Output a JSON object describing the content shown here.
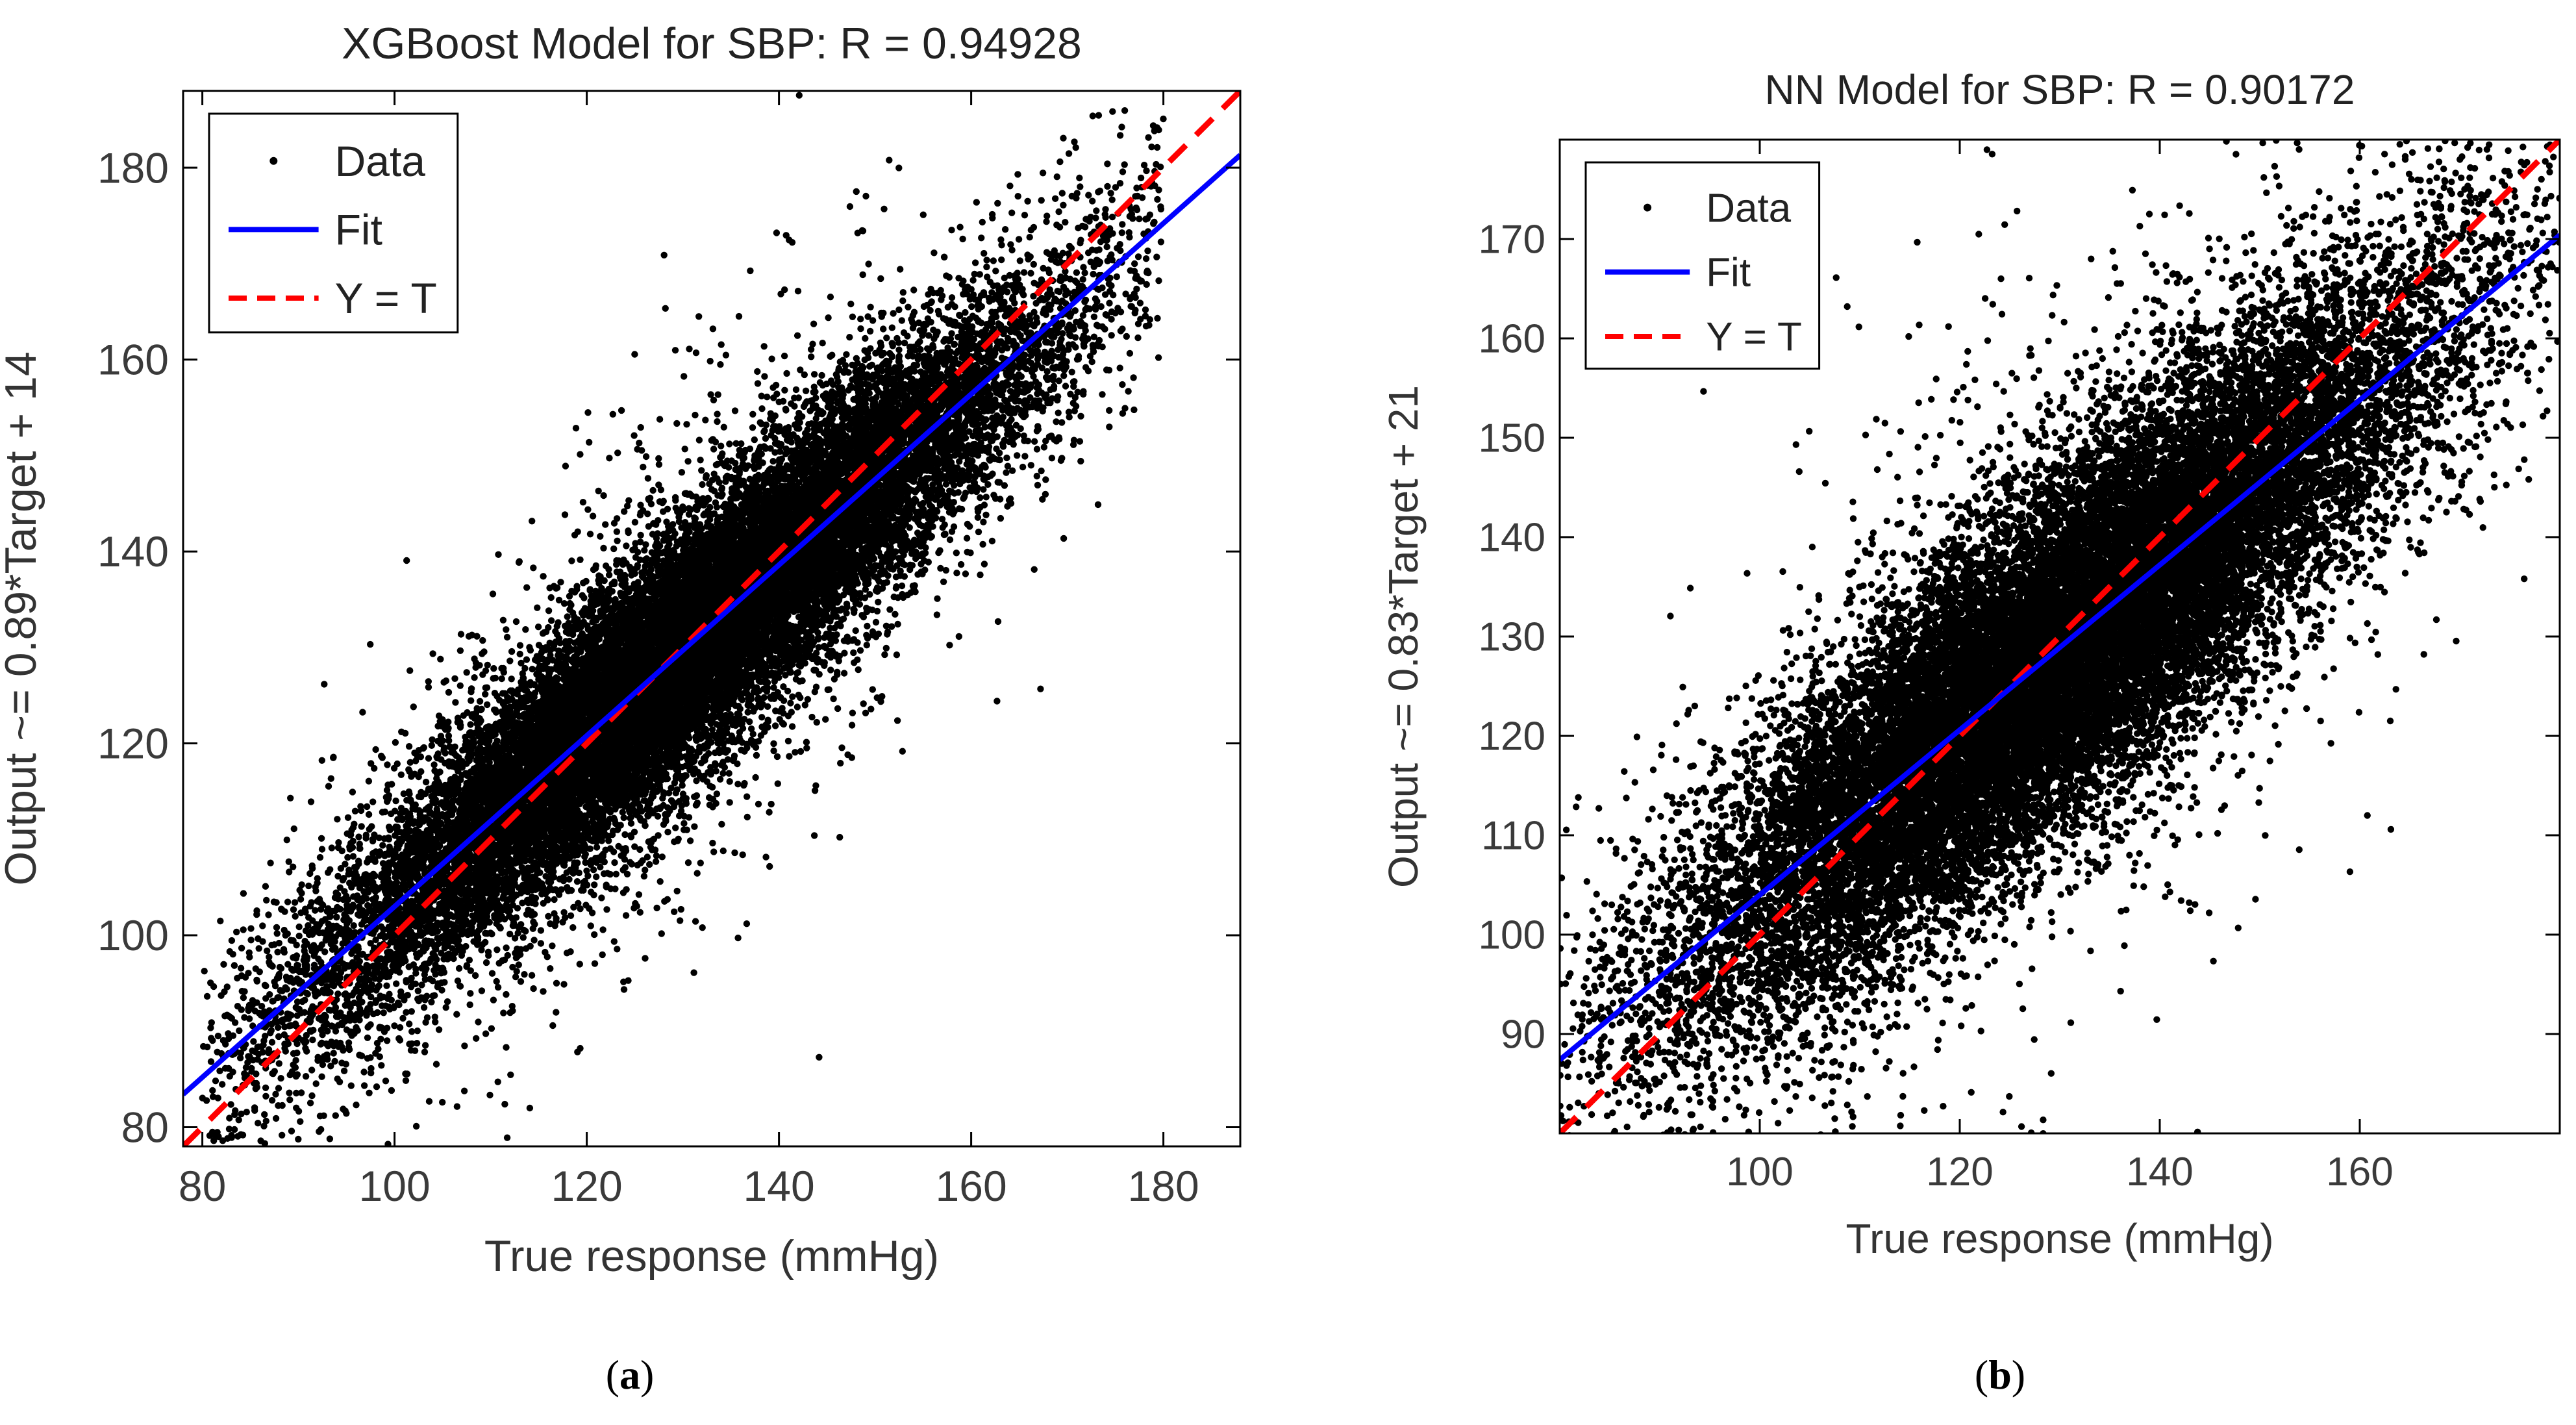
{
  "chart_data": [
    {
      "type": "scatter",
      "title": "XGBoost Model for SBP: R = 0.94928",
      "xlabel": "True response (mmHg)",
      "ylabel": "Output ~= 0.89*Target + 14",
      "xlim": [
        78,
        188
      ],
      "ylim": [
        78,
        188
      ],
      "xticks": [
        80,
        100,
        120,
        140,
        160,
        180
      ],
      "yticks": [
        80,
        100,
        120,
        140,
        160,
        180
      ],
      "fit": {
        "slope": 0.89,
        "intercept": 14
      },
      "R": 0.94928,
      "x_data_range": [
        80,
        180
      ],
      "legend": [
        "Data",
        "Fit",
        "Y = T"
      ],
      "legend_location": "top-left",
      "approx_points": 22000,
      "residual_sd": 6.5
    },
    {
      "type": "scatter",
      "title": "NN Model for SBP: R = 0.90172",
      "xlabel": "True response (mmHg)",
      "ylabel": "Output ~= 0.83*Target + 21",
      "xlim": [
        80,
        180
      ],
      "ylim": [
        80,
        180
      ],
      "xticks": [
        100,
        120,
        140,
        160
      ],
      "yticks": [
        90,
        100,
        110,
        120,
        130,
        140,
        150,
        160,
        170
      ],
      "fit": {
        "slope": 0.83,
        "intercept": 21
      },
      "R": 0.90172,
      "x_data_range": [
        80,
        180
      ],
      "legend": [
        "Data",
        "Fit",
        "Y = T"
      ],
      "legend_location": "top-left",
      "approx_points": 24000,
      "residual_sd": 9.0
    }
  ],
  "captions": {
    "a": "a",
    "b": "b"
  },
  "colors": {
    "data": "#000000",
    "fit": "#0000ff",
    "identity": "#ff0000",
    "axes": "#000000"
  }
}
